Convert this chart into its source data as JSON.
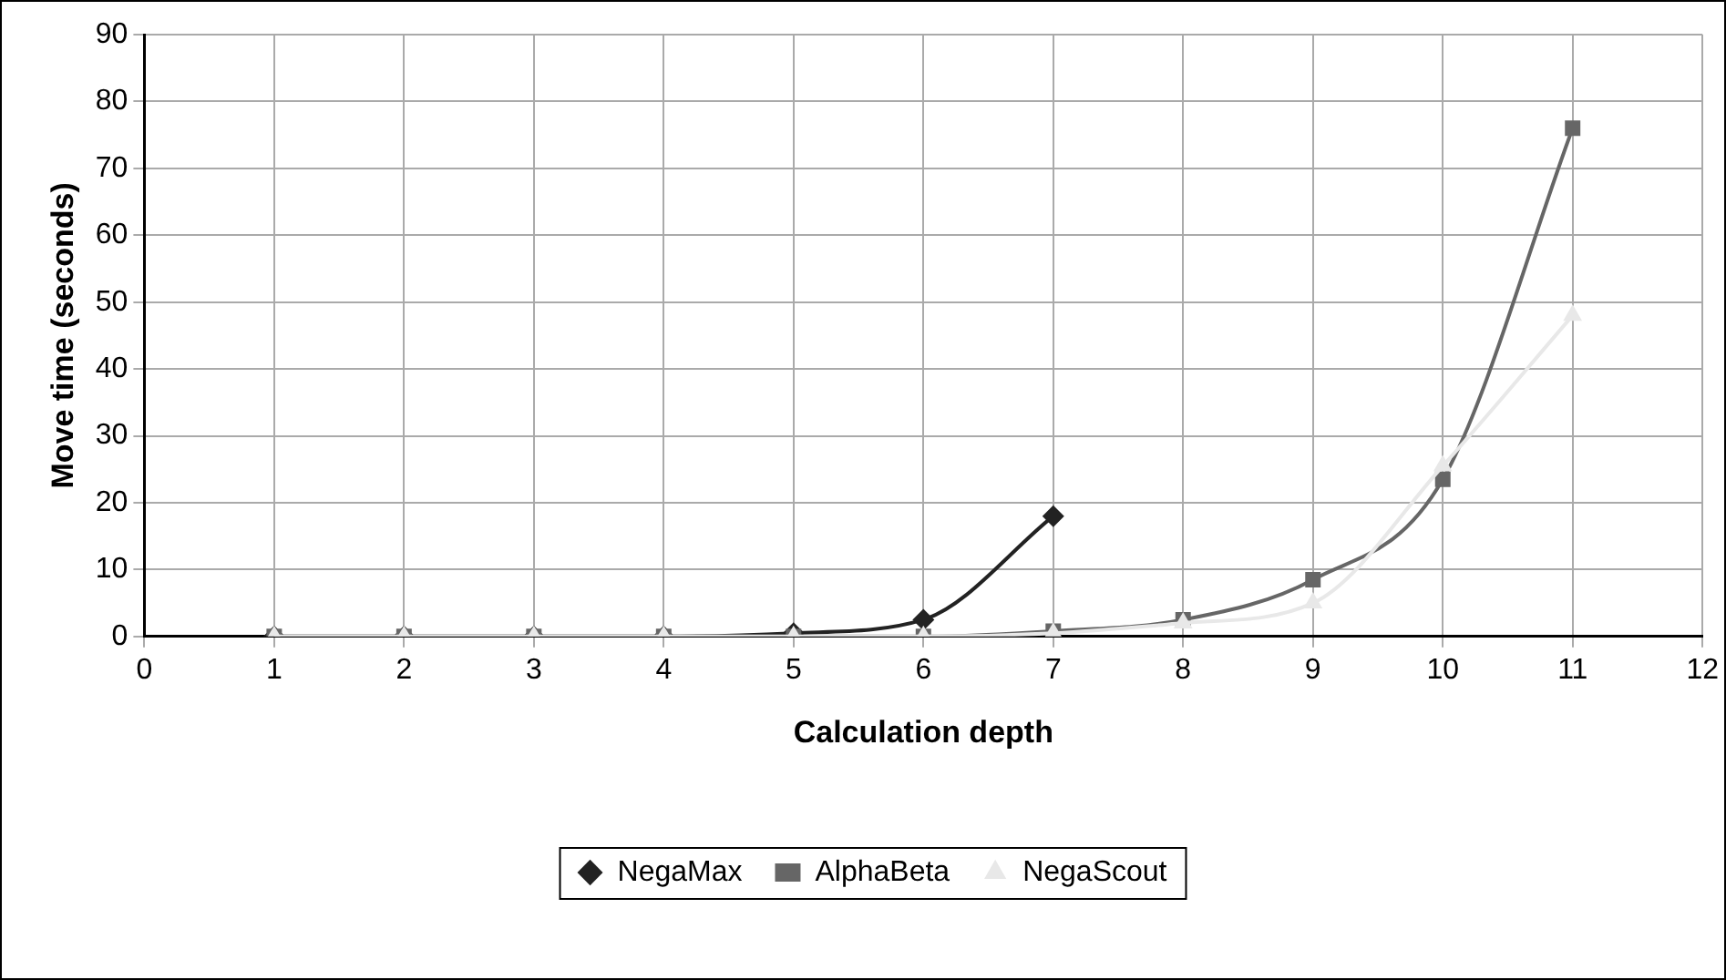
{
  "chart_data": {
    "type": "line",
    "xlabel": "Calculation depth",
    "ylabel": "Move time (seconds)",
    "x": [
      1,
      2,
      3,
      4,
      5,
      6,
      7,
      8,
      9,
      10,
      11
    ],
    "series": [
      {
        "name": "NegaMax",
        "color": "#222222",
        "marker": "diamond",
        "values": [
          0,
          0,
          0,
          0,
          0.5,
          2.5,
          18,
          null,
          null,
          null,
          null
        ]
      },
      {
        "name": "AlphaBeta",
        "color": "#666666",
        "marker": "square",
        "values": [
          0,
          0,
          0,
          0,
          0,
          0,
          0.8,
          2.5,
          8.5,
          23.5,
          76
        ]
      },
      {
        "name": "NegaScout",
        "color": "#e8e8e8",
        "marker": "triangle",
        "values": [
          0,
          0,
          0,
          0,
          0,
          0,
          0.5,
          2,
          5,
          25.5,
          48
        ]
      }
    ],
    "xlim": [
      0,
      12
    ],
    "xticks": [
      0,
      1,
      2,
      3,
      4,
      5,
      6,
      7,
      8,
      9,
      10,
      11,
      12
    ],
    "ylim": [
      0,
      90
    ],
    "yticks": [
      0,
      10,
      20,
      30,
      40,
      50,
      60,
      70,
      80,
      90
    ],
    "grid": true,
    "legend": "bottom",
    "line_style": "solid"
  }
}
